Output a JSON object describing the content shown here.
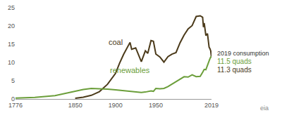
{
  "chart_data": {
    "type": "line",
    "x": [
      1776,
      1800,
      1825,
      1850,
      1860,
      1870,
      1880,
      1890,
      1900,
      1905,
      1910,
      1918,
      1920,
      1925,
      1932,
      1937,
      1940,
      1944,
      1947,
      1950,
      1955,
      1960,
      1965,
      1970,
      1975,
      1980,
      1985,
      1990,
      1995,
      2000,
      2005,
      2008,
      2009,
      2010,
      2012,
      2014,
      2015,
      2016,
      2017,
      2018,
      2019
    ],
    "series": [
      {
        "name": "coal",
        "color": "#4b3a1a",
        "values": [
          null,
          null,
          null,
          0.2,
          0.5,
          1.0,
          2.0,
          4.0,
          7.0,
          9.8,
          12.2,
          15.5,
          13.6,
          14.0,
          10.2,
          13.2,
          12.5,
          16.0,
          15.8,
          12.3,
          11.5,
          10.1,
          11.6,
          12.3,
          12.7,
          15.4,
          17.5,
          19.2,
          20.1,
          22.6,
          22.8,
          22.4,
          19.7,
          20.8,
          17.4,
          17.9,
          15.5,
          14.2,
          13.8,
          13.2,
          11.3
        ]
      },
      {
        "name": "renewables",
        "color": "#6b9e3a",
        "values": [
          0.25,
          0.45,
          0.9,
          2.1,
          2.6,
          2.9,
          2.85,
          2.7,
          2.5,
          2.4,
          2.3,
          2.2,
          2.1,
          2.0,
          1.8,
          1.9,
          2.0,
          2.2,
          2.1,
          2.9,
          2.8,
          2.9,
          3.4,
          4.1,
          4.7,
          5.4,
          6.1,
          6.0,
          6.6,
          6.1,
          6.2,
          7.3,
          7.6,
          8.1,
          8.0,
          9.4,
          9.7,
          10.4,
          11.0,
          11.5,
          11.5
        ]
      }
    ],
    "xlim": [
      1776,
      2019
    ],
    "xticks": [
      1776,
      1850,
      1900,
      1950,
      2019
    ],
    "ylim": [
      0,
      25
    ],
    "yticks": [
      0,
      5,
      10,
      15,
      20,
      25
    ],
    "grid": false,
    "annotations": [
      {
        "text": "2019 consumption"
      },
      {
        "text": "11.5 quads",
        "color": "#6b9e3a"
      },
      {
        "text": "11.3 quads",
        "color": "#4b3a1a"
      },
      {
        "text": "eia",
        "color": "#8a8a8a"
      }
    ]
  }
}
